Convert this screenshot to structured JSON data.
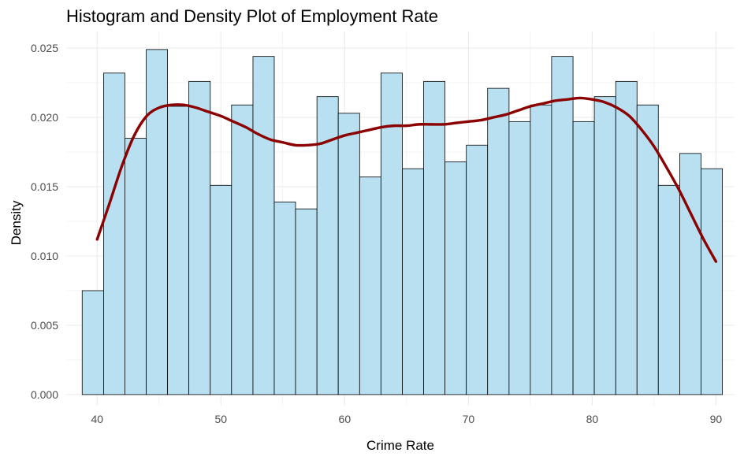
{
  "chart_data": {
    "type": "bar",
    "title": "Histogram and Density Plot of Employment Rate",
    "xlabel": "Crime Rate",
    "ylabel": "Density",
    "xlim": [
      37.5,
      91.5
    ],
    "ylim": [
      -0.0008,
      0.0262
    ],
    "x_ticks": [
      40,
      50,
      60,
      70,
      80,
      90
    ],
    "x_tick_labels": [
      "40",
      "50",
      "60",
      "70",
      "80",
      "90"
    ],
    "y_ticks": [
      0.0,
      0.005,
      0.01,
      0.015,
      0.02,
      0.025
    ],
    "y_tick_labels": [
      "0.000",
      "0.005",
      "0.010",
      "0.015",
      "0.020",
      "0.025"
    ],
    "grid": true,
    "bin_width": 1.724,
    "bins": [
      {
        "x0": 38.79,
        "x1": 40.52,
        "value": 0.0075
      },
      {
        "x0": 40.52,
        "x1": 42.24,
        "value": 0.0232
      },
      {
        "x0": 42.24,
        "x1": 43.97,
        "value": 0.0185
      },
      {
        "x0": 43.97,
        "x1": 45.69,
        "value": 0.0249
      },
      {
        "x0": 45.69,
        "x1": 47.41,
        "value": 0.0208
      },
      {
        "x0": 47.41,
        "x1": 49.14,
        "value": 0.0226
      },
      {
        "x0": 49.14,
        "x1": 50.86,
        "value": 0.0151
      },
      {
        "x0": 50.86,
        "x1": 52.59,
        "value": 0.0209
      },
      {
        "x0": 52.59,
        "x1": 54.31,
        "value": 0.0244
      },
      {
        "x0": 54.31,
        "x1": 56.03,
        "value": 0.0139
      },
      {
        "x0": 56.03,
        "x1": 57.76,
        "value": 0.0134
      },
      {
        "x0": 57.76,
        "x1": 59.48,
        "value": 0.0215
      },
      {
        "x0": 59.48,
        "x1": 61.21,
        "value": 0.0203
      },
      {
        "x0": 61.21,
        "x1": 62.93,
        "value": 0.0157
      },
      {
        "x0": 62.93,
        "x1": 64.66,
        "value": 0.0232
      },
      {
        "x0": 64.66,
        "x1": 66.38,
        "value": 0.0163
      },
      {
        "x0": 66.38,
        "x1": 68.1,
        "value": 0.0226
      },
      {
        "x0": 68.1,
        "x1": 69.83,
        "value": 0.0168
      },
      {
        "x0": 69.83,
        "x1": 71.55,
        "value": 0.018
      },
      {
        "x0": 71.55,
        "x1": 73.28,
        "value": 0.0221
      },
      {
        "x0": 73.28,
        "x1": 75.0,
        "value": 0.0197
      },
      {
        "x0": 75.0,
        "x1": 76.72,
        "value": 0.0209
      },
      {
        "x0": 76.72,
        "x1": 78.45,
        "value": 0.0244
      },
      {
        "x0": 78.45,
        "x1": 80.17,
        "value": 0.0197
      },
      {
        "x0": 80.17,
        "x1": 81.9,
        "value": 0.0215
      },
      {
        "x0": 81.9,
        "x1": 83.62,
        "value": 0.0226
      },
      {
        "x0": 83.62,
        "x1": 85.34,
        "value": 0.0209
      },
      {
        "x0": 85.34,
        "x1": 87.07,
        "value": 0.0151
      },
      {
        "x0": 87.07,
        "x1": 88.79,
        "value": 0.0174
      },
      {
        "x0": 88.79,
        "x1": 90.52,
        "value": 0.0163
      }
    ],
    "density": {
      "x": [
        40,
        41,
        42,
        43,
        44,
        45,
        46,
        47,
        48,
        49,
        50,
        51,
        52,
        53,
        54,
        55,
        56,
        57,
        58,
        59,
        60,
        61,
        62,
        63,
        64,
        65,
        66,
        67,
        68,
        69,
        70,
        71,
        72,
        73,
        74,
        75,
        76,
        77,
        78,
        79,
        80,
        81,
        82,
        83,
        84,
        85,
        86,
        87,
        88,
        89,
        90
      ],
      "y": [
        0.0112,
        0.0138,
        0.0165,
        0.0187,
        0.0201,
        0.0207,
        0.0209,
        0.0209,
        0.0207,
        0.0204,
        0.0201,
        0.0197,
        0.0193,
        0.0188,
        0.0184,
        0.0182,
        0.018,
        0.018,
        0.0181,
        0.0184,
        0.0187,
        0.0189,
        0.0191,
        0.0193,
        0.0194,
        0.0194,
        0.0195,
        0.0195,
        0.0195,
        0.0196,
        0.0197,
        0.0198,
        0.02,
        0.0202,
        0.0205,
        0.0208,
        0.021,
        0.0212,
        0.0213,
        0.0214,
        0.0213,
        0.0211,
        0.0207,
        0.0201,
        0.0191,
        0.0179,
        0.0164,
        0.0148,
        0.013,
        0.0112,
        0.0096
      ]
    },
    "colors": {
      "bar_fill": "#b9e0f1",
      "bar_stroke": "#000000",
      "density_line": "#8b0000",
      "grid": "#ebebeb",
      "tick_text": "#4d4d4d"
    }
  }
}
